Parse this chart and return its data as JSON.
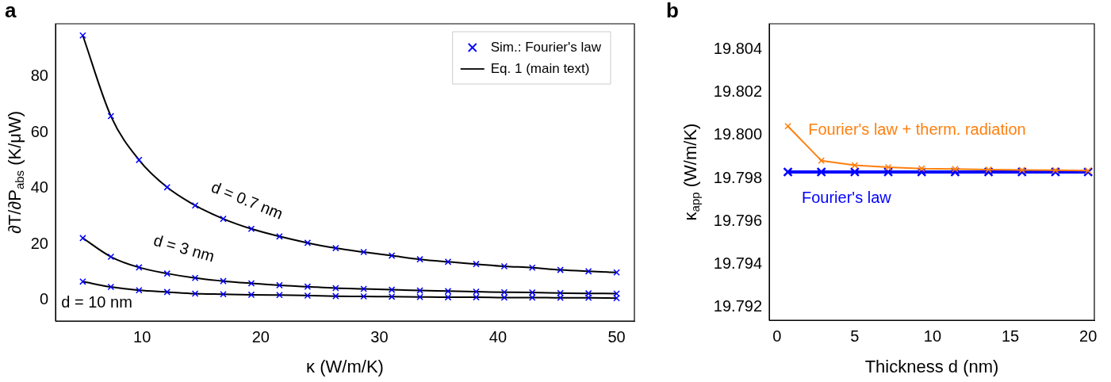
{
  "chart_data": [
    {
      "type": "scatter",
      "title": "a",
      "xlabel": "κ (W/m/K)",
      "ylabel": "∂T/∂P$_{abs}$ (K/μW)",
      "x": [
        5,
        7.37,
        9.74,
        12.11,
        14.47,
        16.84,
        19.21,
        21.58,
        23.95,
        26.32,
        28.68,
        31.05,
        33.42,
        35.79,
        38.16,
        40.53,
        42.89,
        45.26,
        47.63,
        50
      ],
      "series": [
        {
          "name": "Sim.: Fourier's law",
          "color": "#0000ff",
          "values": [
            94.8,
            65.9,
            50.2,
            40.4,
            33.9,
            29.1,
            25.5,
            22.8,
            20.5,
            18.6,
            17.2,
            15.9,
            14.6,
            13.7,
            12.9,
            12.1,
            11.6,
            10.8,
            10.3,
            9.9
          ]
        },
        {
          "color": "#0000ff",
          "values": [
            22.2,
            15.5,
            11.7,
            9.5,
            7.9,
            6.8,
            6.0,
            5.3,
            4.8,
            4.3,
            4.0,
            3.7,
            3.4,
            3.2,
            3.0,
            2.8,
            2.7,
            2.5,
            2.4,
            2.3
          ]
        },
        {
          "color": "#0000ff",
          "values": [
            6.6,
            4.7,
            3.5,
            2.9,
            2.3,
            2.1,
            1.9,
            1.8,
            1.6,
            1.4,
            1.3,
            1.2,
            1.1,
            1.0,
            1.0,
            0.9,
            0.9,
            0.8,
            0.8,
            0.7
          ]
        },
        {
          "type": "line",
          "marker": "none",
          "name": "Eq. 1 (main text)",
          "color": "#000000",
          "values": [
            94.8,
            65.9,
            50.2,
            40.4,
            33.9,
            29.1,
            25.5,
            22.8,
            20.5,
            18.6,
            17.2,
            15.9,
            14.6,
            13.7,
            12.9,
            12.1,
            11.6,
            10.8,
            10.3,
            9.9
          ]
        },
        {
          "type": "line",
          "marker": "none",
          "color": "#000000",
          "values": [
            22.2,
            15.5,
            11.7,
            9.5,
            7.9,
            6.8,
            6.0,
            5.3,
            4.8,
            4.3,
            4.0,
            3.7,
            3.4,
            3.2,
            3.0,
            2.8,
            2.7,
            2.5,
            2.4,
            2.3
          ]
        },
        {
          "type": "line",
          "marker": "none",
          "color": "#000000",
          "values": [
            6.6,
            4.7,
            3.5,
            2.9,
            2.3,
            2.1,
            1.9,
            1.8,
            1.6,
            1.4,
            1.3,
            1.2,
            1.1,
            1.0,
            1.0,
            0.9,
            0.9,
            0.8,
            0.8,
            0.7
          ]
        }
      ],
      "xlim": [
        2.7,
        51.5
      ],
      "xticks": [
        10,
        20,
        30,
        40,
        50
      ],
      "ylim": [
        -7.5,
        99
      ],
      "yticks": [
        0,
        20,
        40,
        60,
        80
      ],
      "marker": "cross",
      "legend": "top right",
      "grid": false,
      "annotations": [
        "d = 0.7 nm",
        "d = 3 nm",
        "d = 10 nm"
      ]
    },
    {
      "type": "line",
      "title": "b",
      "xlabel": "Thickness d (nm)",
      "ylabel": "κ$_{app}$ (W/m/K)",
      "x": [
        0.7,
        2.85,
        5,
        7.15,
        9.3,
        11.45,
        13.6,
        15.75,
        17.9,
        20
      ],
      "series": [
        {
          "name": "Fourier's law + therm. radiation",
          "color": "#ff7f0e",
          "values": [
            19.80043,
            19.79883,
            19.79861,
            19.79852,
            19.79846,
            19.79844,
            19.79841,
            19.79839,
            19.79838,
            19.79836
          ]
        },
        {
          "name": "Fourier's law",
          "color": "#0000ff",
          "values": [
            19.7983,
            19.7983,
            19.7983,
            19.7983,
            19.7983,
            19.7983,
            19.7983,
            19.7983,
            19.7983,
            19.7983
          ]
        }
      ],
      "xlim": [
        -0.5,
        20.4
      ],
      "xticks": [
        0,
        5,
        10,
        15,
        20
      ],
      "ylim": [
        19.7914,
        19.8052
      ],
      "yticks": [
        19.792,
        19.794,
        19.796,
        19.798,
        {
          "value": 19.8,
          "label": "19.800"
        },
        19.802,
        19.804
      ],
      "marker": "cross",
      "legend": false,
      "grid": false
    }
  ]
}
